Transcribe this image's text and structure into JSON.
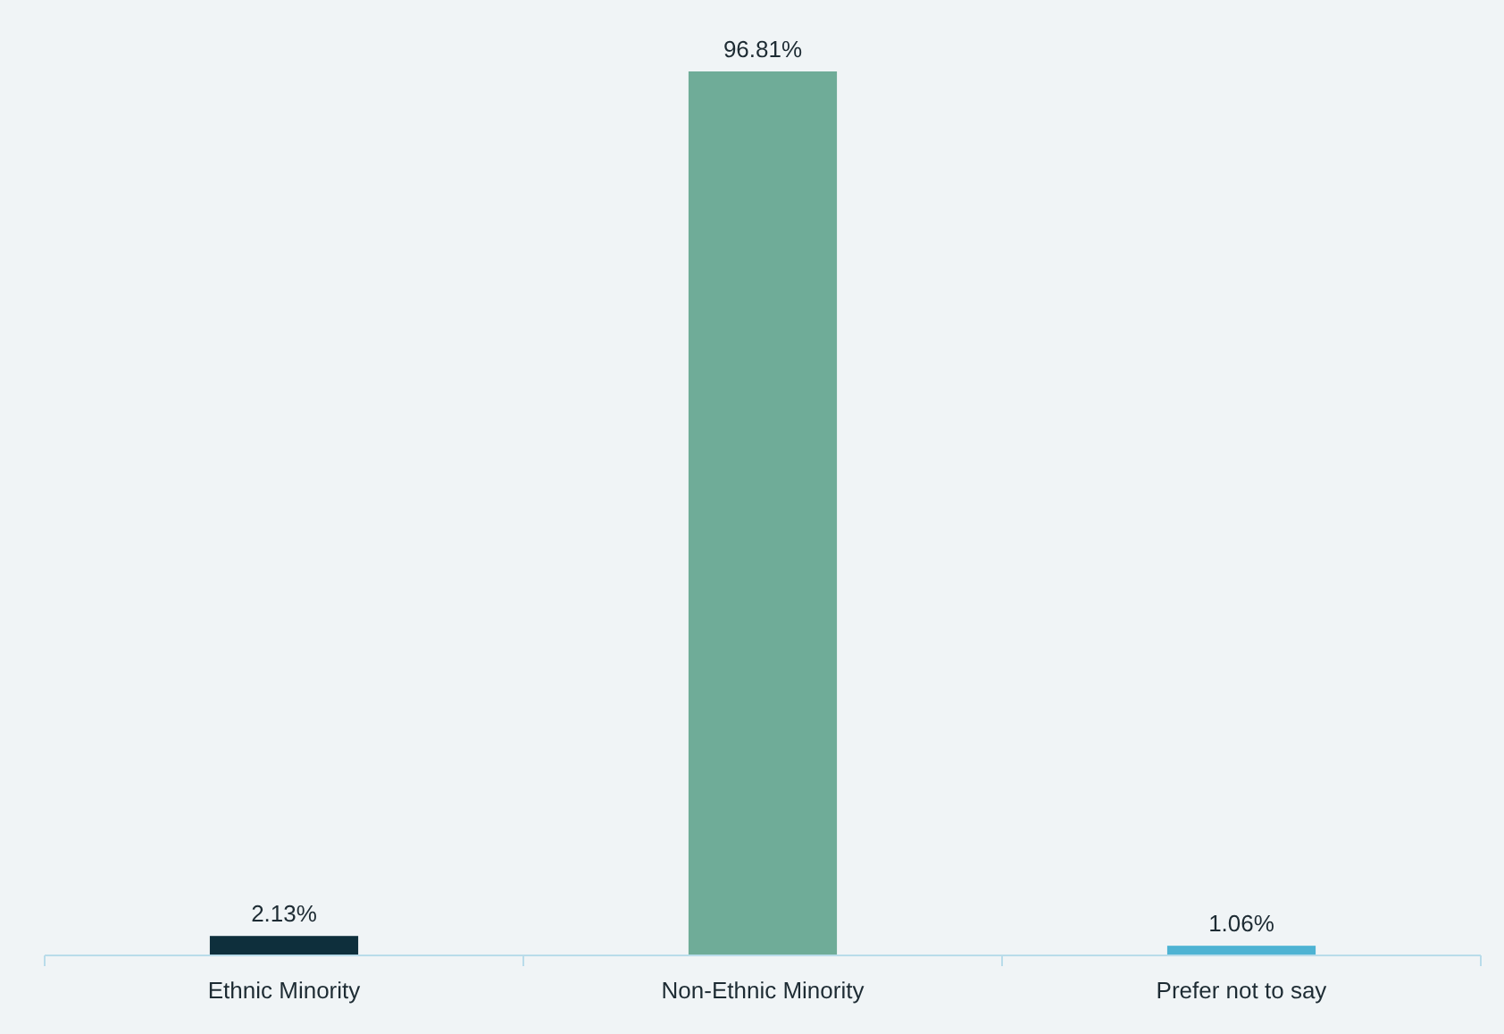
{
  "chart_data": {
    "type": "bar",
    "categories": [
      "Ethnic Minority",
      "Non-Ethnic Minority",
      "Prefer not to say"
    ],
    "values": [
      2.13,
      96.81,
      1.06
    ],
    "colors": [
      "#0e2f3c",
      "#6fac98",
      "#4eb3d3"
    ],
    "value_labels": [
      "2.13%",
      "96.81%",
      "1.06%"
    ]
  }
}
